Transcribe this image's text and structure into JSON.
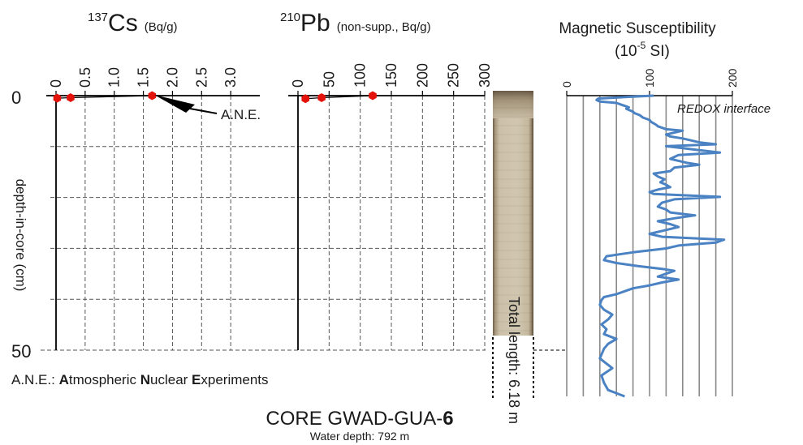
{
  "panels": {
    "cs": {
      "title_symbol": "Cs",
      "title_mass": "137",
      "title_unit": "(Bq/g)",
      "ticks": [
        "0",
        "0.5",
        "1.0",
        "1.5",
        "2.0",
        "2.5",
        "3.0"
      ]
    },
    "pb": {
      "title_symbol": "Pb",
      "title_mass": "210",
      "title_unit": "(non-supp., Bq/g)",
      "ticks": [
        "0",
        "50",
        "100",
        "150",
        "200",
        "250",
        "300"
      ]
    },
    "mag": {
      "title_line1": "Magnetic Susceptibility",
      "title_pre": "(10",
      "title_exp": "-5",
      "title_post": " SI)",
      "ticks": [
        "0",
        "100",
        "200"
      ],
      "redox_label": "REDOX interface"
    }
  },
  "depth_axis": {
    "label": "depth-in-core (cm)",
    "ticks": [
      "0",
      "50"
    ]
  },
  "annotations": {
    "ane_marker": "A.N.E.",
    "legend_key": "A.N.E.: ",
    "legend_A": "A",
    "legend_A_rest": "tmospheric ",
    "legend_N": "N",
    "legend_N_rest": "uclear ",
    "legend_E": "E",
    "legend_E_rest": "xperiments",
    "total_length": "Total length: 6.18 m"
  },
  "core": {
    "name_prefix": "CORE GWAD-GUA-",
    "name_number": "6",
    "water_depth": "Water depth: 792 m"
  },
  "colors": {
    "marker": "#e3120b",
    "mag_line": "#4a82c3",
    "grid": "#555555",
    "axis": "#000000"
  },
  "chart_data": [
    {
      "type": "scatter",
      "title": "137Cs (Bq/g)",
      "xlabel": "137Cs (Bq/g)",
      "ylabel": "depth-in-core (cm)",
      "xlim": [
        0,
        3.5
      ],
      "ylim": [
        50,
        0
      ],
      "points": [
        {
          "x": 0.02,
          "y": 0.5
        },
        {
          "x": 0.25,
          "y": 0.4
        },
        {
          "x": 1.65,
          "y": 0.0
        }
      ]
    },
    {
      "type": "scatter",
      "title": "210Pb (non-supp., Bq/g)",
      "xlabel": "210Pb (non-supp., Bq/g)",
      "ylabel": "depth-in-core (cm)",
      "xlim": [
        0,
        300
      ],
      "ylim": [
        50,
        0
      ],
      "points": [
        {
          "x": 12,
          "y": 0.6
        },
        {
          "x": 38,
          "y": 0.4
        },
        {
          "x": 120,
          "y": 0.0
        }
      ]
    },
    {
      "type": "line",
      "title": "Magnetic Susceptibility (10-5 SI)",
      "xlabel": "Magnetic Susceptibility (10-5 SI)",
      "xlim": [
        0,
        200
      ],
      "ylim": [
        618,
        0
      ],
      "ylabel": "Total length: 6.18 m",
      "x": [
        105,
        70,
        38,
        36,
        40,
        60,
        65,
        70,
        75,
        72,
        76,
        80,
        82,
        88,
        92,
        100,
        102,
        105,
        108,
        110,
        115,
        120,
        140,
        130,
        120,
        125,
        140,
        150,
        160,
        180,
        120,
        140,
        160,
        185,
        135,
        130,
        125,
        135,
        145,
        160,
        130,
        125,
        105,
        110,
        118,
        113,
        120,
        125,
        110,
        100,
        105,
        185,
        130,
        115,
        110,
        120,
        125,
        155,
        130,
        110,
        125,
        135,
        115,
        100,
        115,
        190,
        180,
        135,
        120,
        80,
        48,
        45,
        60,
        85,
        115,
        130,
        120,
        110,
        135,
        115,
        100,
        80,
        70,
        60,
        45,
        42,
        40,
        45,
        55,
        50,
        42,
        48,
        45,
        60,
        50,
        45,
        40,
        55,
        42,
        45,
        50,
        70
      ],
      "y": [
        0,
        3,
        6,
        9,
        12,
        15,
        18,
        21,
        24,
        27,
        30,
        33,
        36,
        40,
        45,
        50,
        54,
        57,
        60,
        63,
        66,
        69,
        72,
        76,
        80,
        84,
        88,
        92,
        96,
        100,
        104,
        108,
        112,
        117,
        122,
        126,
        130,
        134,
        138,
        142,
        148,
        155,
        160,
        166,
        172,
        178,
        183,
        188,
        193,
        198,
        202,
        208,
        213,
        220,
        228,
        234,
        240,
        246,
        252,
        258,
        264,
        270,
        278,
        284,
        290,
        296,
        302,
        308,
        314,
        322,
        330,
        338,
        344,
        350,
        356,
        360,
        366,
        372,
        378,
        384,
        390,
        396,
        402,
        408,
        414,
        420,
        430,
        440,
        450,
        460,
        470,
        480,
        490,
        500,
        510,
        520,
        540,
        560,
        575,
        590,
        605,
        618
      ]
    }
  ]
}
